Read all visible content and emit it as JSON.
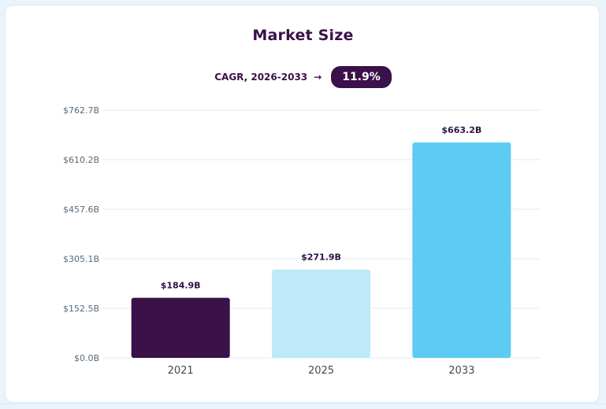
{
  "chart_data": {
    "type": "bar",
    "title": "Market Size",
    "subtitle": {
      "label": "CAGR, 2026-2033",
      "arrow": "→",
      "value": "11.9%"
    },
    "categories": [
      "2021",
      "2025",
      "2033"
    ],
    "values": [
      184.9,
      271.9,
      663.2
    ],
    "data_labels": [
      "$184.9B",
      "$271.9B",
      "$663.2B"
    ],
    "bar_colors": [
      "#3a1148",
      "#bde9f8",
      "#5ecbf5"
    ],
    "y_ticks": [
      {
        "value": 0.0,
        "label": "$0.0B"
      },
      {
        "value": 152.5,
        "label": "$152.5B"
      },
      {
        "value": 305.1,
        "label": "$305.1B"
      },
      {
        "value": 457.6,
        "label": "$457.6B"
      },
      {
        "value": 610.2,
        "label": "$610.2B"
      },
      {
        "value": 762.7,
        "label": "$762.7B"
      }
    ],
    "ylim": [
      0,
      762.7
    ],
    "xlabel": "",
    "ylabel": "",
    "grid": true
  }
}
